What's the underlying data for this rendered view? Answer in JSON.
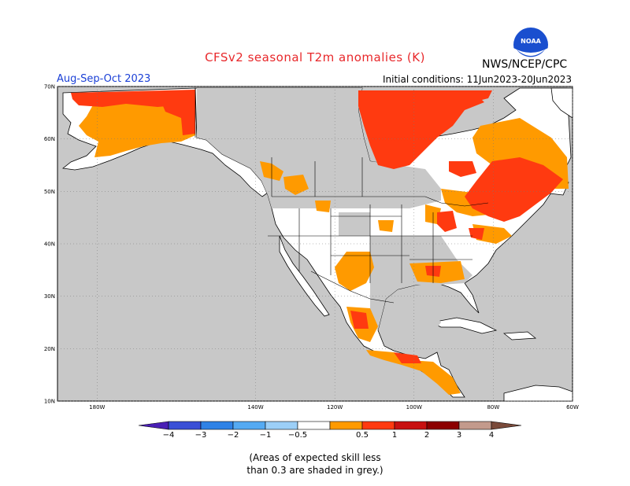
{
  "header": {
    "title": "CFSv2 seasonal T2m anomalies (K)",
    "agency": "NWS/NCEP/CPC",
    "period": "Aug-Sep-Oct 2023",
    "initial_conditions": "Initial conditions: 11Jun2023-20Jun2023",
    "logo_label": "NOAA"
  },
  "map": {
    "lon_range": [
      -190,
      -60
    ],
    "lat_range": [
      10,
      70
    ],
    "lat_labels": [
      "10N",
      "20N",
      "30N",
      "40N",
      "50N",
      "60N",
      "70N"
    ],
    "lat_values": [
      10,
      20,
      30,
      40,
      50,
      60,
      70
    ],
    "lon_labels": [
      "180W",
      "140W",
      "120W",
      "100W",
      "80W",
      "60W"
    ],
    "lon_values": [
      -180,
      -140,
      -120,
      -100,
      -80,
      -60
    ],
    "colors": {
      "land": "#ffffff",
      "low_skill": "#c8c8c8",
      "ocean": "#c8c8c8",
      "warm_0_5_1": "#ff9a00",
      "warm_1_2": "#ff3a10"
    }
  },
  "colorbar": {
    "labels": [
      "−4",
      "−3",
      "−2",
      "−1",
      "−0.5",
      "0.5",
      "1",
      "2",
      "3",
      "4"
    ],
    "colors": [
      "#4a1fb5",
      "#3a4fd6",
      "#2f82e6",
      "#55aaf2",
      "#9ccff7",
      "#ffffff",
      "#ff9a00",
      "#ff3a10",
      "#c81010",
      "#8c0000",
      "#c39a8c",
      "#7a4a3a"
    ]
  },
  "footnote": {
    "line1": "(Areas of expected skill less",
    "line2": "than 0.3 are shaded in grey.)"
  }
}
